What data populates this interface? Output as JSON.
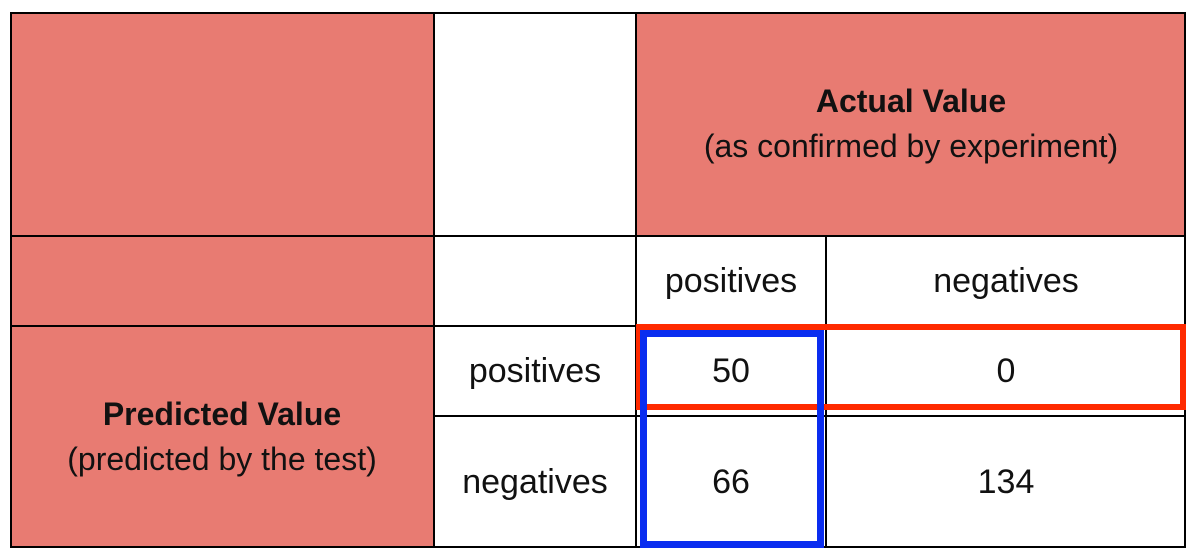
{
  "header": {
    "actual_title": "Actual Value",
    "actual_subtitle": "(as confirmed by experiment)",
    "predicted_title": "Predicted Value",
    "predicted_subtitle": "(predicted by the test)"
  },
  "columns": [
    "positives",
    "negatives"
  ],
  "rows": [
    {
      "label": "positives",
      "values": [
        "50",
        "0"
      ]
    },
    {
      "label": "negatives",
      "values": [
        "66",
        "134"
      ]
    }
  ],
  "colors": {
    "header_fill": "#e87b72",
    "row_highlight": "#ff2a00",
    "column_highlight": "#0a2df0"
  }
}
